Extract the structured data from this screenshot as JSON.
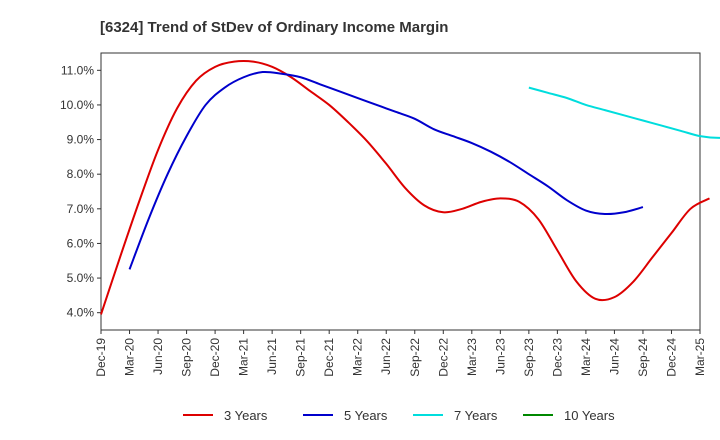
{
  "chart_data": {
    "type": "line",
    "title": "[6324]  Trend of StDev of Ordinary Income Margin",
    "xlabel": "",
    "ylabel": "",
    "x_ticks": [
      "Dec-19",
      "Mar-20",
      "Jun-20",
      "Sep-20",
      "Dec-20",
      "Mar-21",
      "Jun-21",
      "Sep-21",
      "Dec-21",
      "Mar-22",
      "Jun-22",
      "Sep-22",
      "Dec-22",
      "Mar-23",
      "Jun-23",
      "Sep-23",
      "Dec-23",
      "Mar-24",
      "Jun-24",
      "Sep-24",
      "Dec-24",
      "Mar-25"
    ],
    "y_ticks": [
      "4.0%",
      "5.0%",
      "6.0%",
      "7.0%",
      "8.0%",
      "9.0%",
      "10.0%",
      "11.0%"
    ],
    "ylim": [
      3.5,
      11.5
    ],
    "grid": true,
    "legend_position": "bottom",
    "series": [
      {
        "name": "3 Years",
        "color": "#dd0000",
        "start_index": 0,
        "values": [
          3.95,
          5.6,
          7.2,
          8.7,
          9.9,
          10.7,
          11.1,
          11.25,
          11.25,
          11.1,
          10.8,
          10.4,
          10.0,
          9.5,
          8.95,
          8.3,
          7.6,
          7.1,
          6.9,
          7.0,
          7.2,
          7.3,
          7.2,
          6.7,
          5.8,
          4.9,
          4.4,
          4.45,
          4.9,
          5.6,
          6.3,
          7.0,
          7.3
        ]
      },
      {
        "name": "5 Years",
        "color": "#0000cc",
        "start_index": 1,
        "values": [
          5.25,
          6.7,
          8.0,
          9.1,
          10.0,
          10.5,
          10.8,
          10.95,
          10.9,
          10.8,
          10.6,
          10.4,
          10.2,
          10.0,
          9.8,
          9.6,
          9.3,
          9.1,
          8.9,
          8.65,
          8.35,
          8.0,
          7.65,
          7.25,
          6.95,
          6.85,
          6.9,
          7.05
        ]
      },
      {
        "name": "7 Years",
        "color": "#00dddd",
        "start_index": 15,
        "values": [
          10.5,
          10.35,
          10.2,
          10.0,
          9.85,
          9.7,
          9.55,
          9.4,
          9.25,
          9.1,
          9.05,
          9.1,
          9.2,
          9.3,
          9.35,
          9.3
        ]
      },
      {
        "name": "10 Years",
        "color": "#008800",
        "start_index": 0,
        "values": []
      }
    ]
  }
}
